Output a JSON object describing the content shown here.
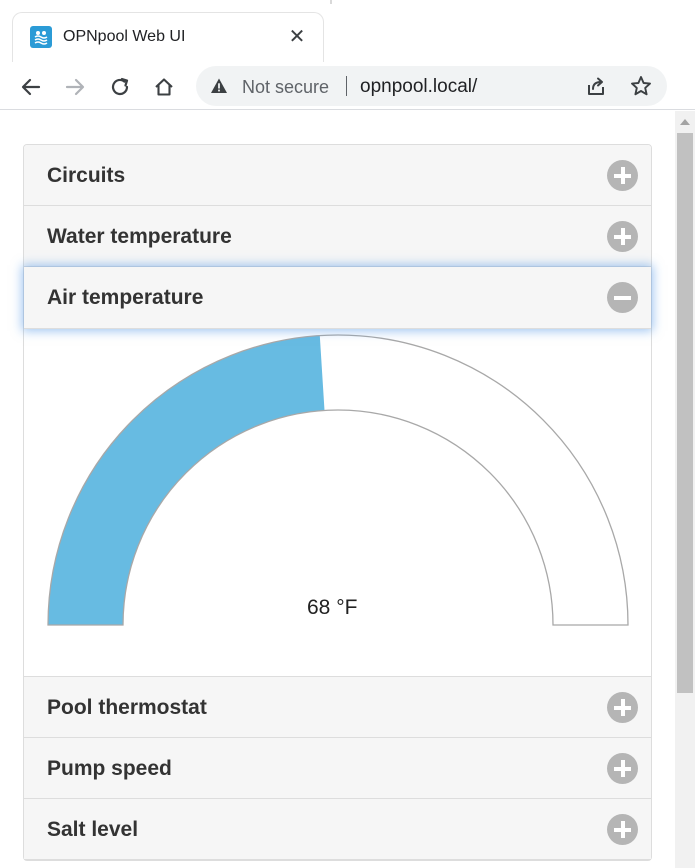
{
  "browser": {
    "tab": {
      "title": "OPNpool Web UI",
      "favicon": "opnpool-favicon-icon",
      "close_glyph": "✕"
    },
    "toolbar": {
      "back_icon": "back-arrow-icon",
      "forward_icon": "forward-arrow-icon",
      "reload_icon": "reload-icon",
      "home_icon": "home-icon"
    },
    "omnibox": {
      "security_status": "Not secure",
      "url": "opnpool.local/",
      "share_icon": "share-icon",
      "bookmark_icon": "star-icon"
    }
  },
  "accordion": {
    "sections": [
      {
        "title": "Circuits",
        "state": "collapsed"
      },
      {
        "title": "Water temperature",
        "state": "collapsed"
      },
      {
        "title": "Air temperature",
        "state": "expanded"
      },
      {
        "title": "Pool thermostat",
        "state": "collapsed"
      },
      {
        "title": "Pump speed",
        "state": "collapsed"
      },
      {
        "title": "Salt level",
        "state": "collapsed"
      }
    ]
  },
  "air_temperature_gauge": {
    "value_label": "68 °F",
    "fill_fraction": 0.48,
    "fill_color": "#67bbe2",
    "track_color": "#ffffff",
    "border_color": "#a8a8a8"
  },
  "colors": {
    "header_bg": "#f6f6f6",
    "header_text": "#333333",
    "icon_bg": "#b5b5b5",
    "active_glow": "#5096e6"
  }
}
